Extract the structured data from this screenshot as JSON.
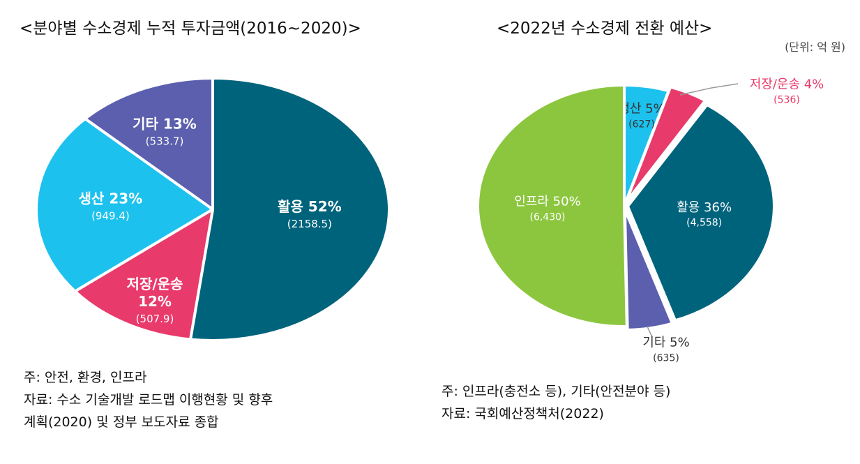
{
  "chart_data": [
    {
      "type": "pie",
      "title": "<분야별 수소경제 누적 투자금액(2016~2020)>",
      "slices": [
        {
          "name": "활용",
          "percent_label": "52%",
          "value": 2158.5,
          "value_label": "(2158.5)",
          "color": "#00637c",
          "label_color": "#ffffff"
        },
        {
          "name": "저장/운송",
          "percent_label": "12%",
          "value": 507.9,
          "value_label": "(507.9)",
          "color": "#e83a6b",
          "label_color": "#ffffff"
        },
        {
          "name": "생산",
          "percent_label": "23%",
          "value": 949.4,
          "value_label": "(949.4)",
          "color": "#1cc1ee",
          "label_color": "#ffffff"
        },
        {
          "name": "기타",
          "percent_label": "13%",
          "value": 533.7,
          "value_label": "(533.7)",
          "color": "#5b5fae",
          "label_color": "#ffffff"
        }
      ],
      "notes": [
        "주: 안전, 환경, 인프라",
        "자료: 수소 기술개발 로드맵 이행현황 및 향후",
        "계획(2020) 및 정부 보도자료 종합"
      ]
    },
    {
      "type": "pie",
      "title": "<2022년 수소경제 전환 예산>",
      "unit": "(단위: 억 원)",
      "slices": [
        {
          "name": "생산",
          "percent_label": "5%",
          "value": 627,
          "value_label": "(627)",
          "color": "#1cc1ee",
          "label_color": "#333333"
        },
        {
          "name": "저장/운송",
          "percent_label": "4%",
          "value": 536,
          "value_label": "(536)",
          "color": "#e83a6b",
          "label_color": "#e83a6b"
        },
        {
          "name": "활용",
          "percent_label": "36%",
          "value": 4558,
          "value_label": "(4,558)",
          "color": "#00637c",
          "label_color": "#ffffff"
        },
        {
          "name": "기타",
          "percent_label": "5%",
          "value": 635,
          "value_label": "(635)",
          "color": "#5b5fae",
          "label_color": "#333333"
        },
        {
          "name": "인프라",
          "percent_label": "50%",
          "value": 6430,
          "value_label": "(6,430)",
          "color": "#8cc63f",
          "label_color": "#ffffff"
        }
      ],
      "notes": [
        "주: 인프라(충전소 등), 기타(안전분야 등)",
        "자료: 국회예산정책처(2022)"
      ]
    }
  ]
}
